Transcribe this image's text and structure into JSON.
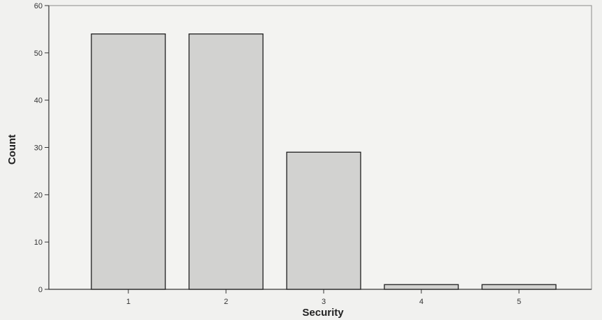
{
  "chart_data": {
    "type": "bar",
    "categories": [
      "1",
      "2",
      "3",
      "4",
      "5"
    ],
    "values": [
      54,
      54,
      29,
      1,
      1
    ],
    "title": "",
    "xlabel": "Security",
    "ylabel": "Count",
    "ylim": [
      0,
      60
    ],
    "yticks": [
      0,
      10,
      20,
      30,
      40,
      50,
      60
    ],
    "grid": false,
    "legend": "none",
    "colors": {
      "bar_fill": "#d2d2d0",
      "bar_stroke": "#1e1e1e",
      "plot_background": "#f3f3f1",
      "axis": "#333333"
    }
  }
}
